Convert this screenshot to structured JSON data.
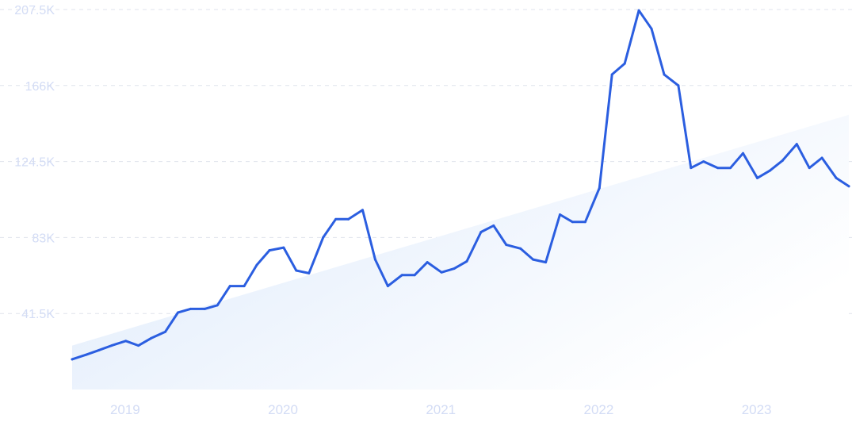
{
  "chart_data": {
    "type": "line",
    "y_ticks": [
      {
        "value": 207500,
        "label": "207.5K"
      },
      {
        "value": 166000,
        "label": "166K"
      },
      {
        "value": 124500,
        "label": "124.5K"
      },
      {
        "value": 83000,
        "label": "83K"
      },
      {
        "value": 41500,
        "label": "41.5K"
      }
    ],
    "x_ticks": [
      {
        "value": 2019.0,
        "label": "2019"
      },
      {
        "value": 2020.0,
        "label": "2020"
      },
      {
        "value": 2021.0,
        "label": "2021"
      },
      {
        "value": 2022.0,
        "label": "2022"
      },
      {
        "value": 2023.0,
        "label": "2023"
      }
    ],
    "xlim": [
      2018.83,
      2023.75
    ],
    "ylim": [
      0,
      207500
    ],
    "grid": true,
    "line_color": "#2b5ee0",
    "trend_fill_color": "#dce9fb",
    "trend": {
      "x": [
        2018.83,
        2023.75
      ],
      "y": [
        24000,
        150000
      ]
    },
    "series": [
      {
        "x": [
          2018.83,
          2018.92,
          2019.0,
          2019.08,
          2019.17,
          2019.25,
          2019.33,
          2019.42,
          2019.5,
          2019.58,
          2019.67,
          2019.75,
          2019.83,
          2019.92,
          2020.0,
          2020.08,
          2020.17,
          2020.25,
          2020.33,
          2020.42,
          2020.5,
          2020.58,
          2020.67,
          2020.75,
          2020.83,
          2020.92,
          2021.0,
          2021.08,
          2021.17,
          2021.25,
          2021.33,
          2021.42,
          2021.5,
          2021.58,
          2021.67,
          2021.75,
          2021.83,
          2021.92,
          2022.0,
          2022.08,
          2022.17,
          2022.25,
          2022.33,
          2022.42,
          2022.5,
          2022.58,
          2022.67,
          2022.75,
          2022.83,
          2022.92,
          2023.0,
          2023.08,
          2023.17,
          2023.25,
          2023.33,
          2023.42,
          2023.5,
          2023.58,
          2023.67,
          2023.75
        ],
        "y": [
          16500,
          19000,
          21500,
          24000,
          26500,
          24000,
          28000,
          31500,
          42000,
          44000,
          44000,
          46000,
          56500,
          56500,
          68000,
          76000,
          77500,
          65000,
          63500,
          83000,
          93000,
          93000,
          98000,
          71000,
          56500,
          62500,
          62500,
          69500,
          64000,
          66000,
          70000,
          86000,
          89500,
          79000,
          77000,
          71000,
          69500,
          95500,
          91500,
          91500,
          110000,
          172000,
          178000,
          207000,
          197000,
          172000,
          166000,
          121000,
          124500,
          121000,
          121000,
          129000,
          115500,
          119500,
          125000,
          134000,
          121000,
          126500,
          115500,
          111000
        ]
      }
    ]
  }
}
